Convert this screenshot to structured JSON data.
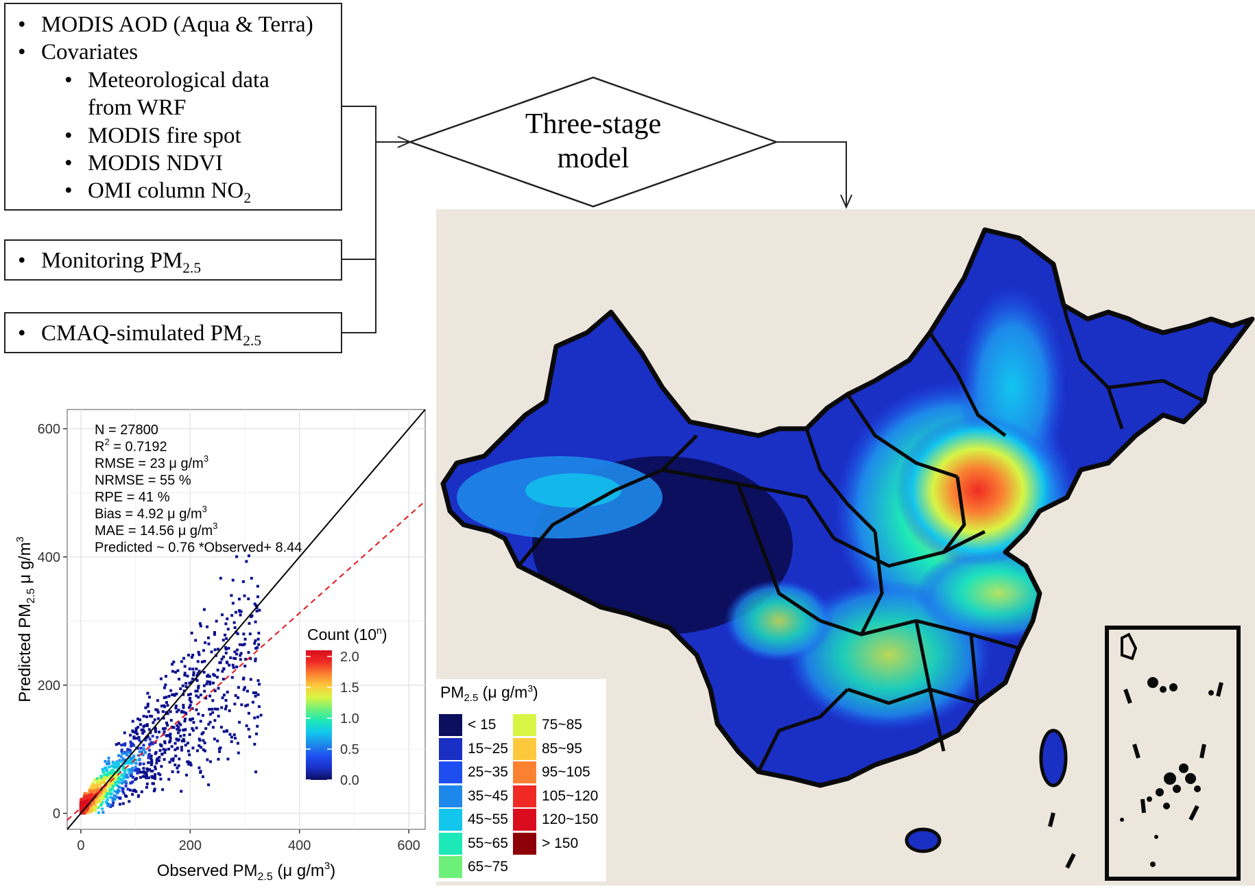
{
  "inputs": {
    "box1": {
      "items": [
        {
          "text": "MODIS AOD (Aqua & Terra)"
        },
        {
          "text": "Covariates"
        },
        {
          "text": "Meteorological data",
          "text2": "from WRF"
        },
        {
          "text": "MODIS fire spot"
        },
        {
          "text": "MODIS NDVI"
        },
        {
          "text": "OMI column NO",
          "sub": "2"
        }
      ]
    },
    "box2": {
      "text": "Monitoring PM",
      "sub": "2.5"
    },
    "box3": {
      "text": "CMAQ-simulated PM",
      "sub": "2.5"
    },
    "bullet": "•"
  },
  "model": {
    "line1": "Three-stage",
    "line2": "model"
  },
  "legend": {
    "title_pre": "PM",
    "title_sub": "2.5",
    "title_post": " (μ g/m",
    "title_sup": "3",
    "title_end": ")",
    "items": [
      {
        "label": "< 15",
        "color": "#0b0f5e"
      },
      {
        "label": "15~25",
        "color": "#1a2fc4"
      },
      {
        "label": "25~35",
        "color": "#1f4ef0"
      },
      {
        "label": "35~45",
        "color": "#1e88ea"
      },
      {
        "label": "45~55",
        "color": "#12c6ee"
      },
      {
        "label": "55~65",
        "color": "#1de8b8"
      },
      {
        "label": "65~75",
        "color": "#6df07a"
      },
      {
        "label": "75~85",
        "color": "#d8f545"
      },
      {
        "label": "85~95",
        "color": "#fdc93c"
      },
      {
        "label": "95~105",
        "color": "#fa8132"
      },
      {
        "label": "105~120",
        "color": "#ef2a24"
      },
      {
        "label": "120~150",
        "color": "#d90d1e"
      },
      {
        "label": "> 150",
        "color": "#8e0007"
      }
    ]
  },
  "map": {
    "background": "#ece6dd",
    "border_color": "#0a0a0a"
  },
  "chart_data": {
    "type": "scatter",
    "xlabel_pre": "Observed PM",
    "xlabel_sub": "2.5",
    "xlabel_post": " (μ g/m",
    "xlabel_sup": "3",
    "xlabel_end": ")",
    "ylabel_pre": "Predicted PM",
    "ylabel_sub": "2.5",
    "ylabel_post": " μ g/m",
    "ylabel_sup": "3",
    "xlim": [
      -25,
      630
    ],
    "ylim": [
      -25,
      630
    ],
    "xticks": [
      0,
      200,
      400,
      600
    ],
    "yticks": [
      0,
      200,
      400,
      600
    ],
    "grid": true,
    "stats": [
      {
        "text": "N = 27800"
      },
      {
        "text": "R",
        "sup": "2",
        "after": " = 0.7192"
      },
      {
        "text": "RMSE = 23 μ g/m",
        "sup": "3"
      },
      {
        "text": "NRMSE = 55 %"
      },
      {
        "text": "RPE = 41 %"
      },
      {
        "text": "Bias = 4.92 μ g/m",
        "sup": "3"
      },
      {
        "text": "MAE = 14.56 μ g/m",
        "sup": "3"
      },
      {
        "text": "Predicted ~ 0.76 *Observed+ 8.44"
      }
    ],
    "identity_line": {
      "slope": 1,
      "intercept": 0
    },
    "fit_line": {
      "slope": 0.76,
      "intercept": 8.44
    },
    "colorbar": {
      "title_pre": "Count (10",
      "title_sup": "n",
      "title_end": ")",
      "ticks": [
        "2.0",
        "1.5",
        "1.0",
        "0.5",
        "0.0"
      ],
      "range": [
        0,
        2.1
      ]
    }
  }
}
